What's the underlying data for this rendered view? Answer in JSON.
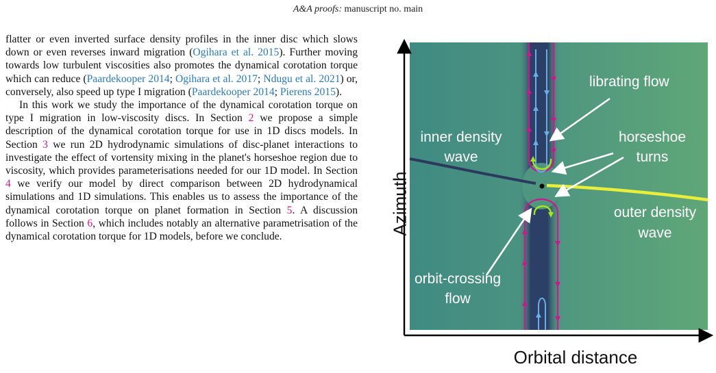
{
  "header": {
    "prefix": "A&A proofs:",
    "suffix": " manuscript no. main"
  },
  "body_text": {
    "p1": [
      {
        "t": "flatter or even inverted surface density profiles in the inner disc which slows down or even reverses inward migration ("
      },
      {
        "t": "Ogihara et al. 2015",
        "c": "cite"
      },
      {
        "t": "). Further moving towards low turbulent viscosities also promotes the dynamical corotation torque which can reduce ("
      },
      {
        "t": "Paardekooper 2014",
        "c": "cite"
      },
      {
        "t": "; "
      },
      {
        "t": "Ogihara et al. 2017",
        "c": "cite"
      },
      {
        "t": "; "
      },
      {
        "t": "Ndugu et al. 2021",
        "c": "cite"
      },
      {
        "t": ") or, conversely, also speed up type I migration ("
      },
      {
        "t": "Paardekooper 2014",
        "c": "cite"
      },
      {
        "t": "; "
      },
      {
        "t": "Pierens 2015",
        "c": "cite"
      },
      {
        "t": ")."
      }
    ],
    "p2": [
      {
        "t": "In this work we study the importance of the dynamical corotation torque on type I migration in low-viscosity discs. In Section "
      },
      {
        "t": "2",
        "c": "sec"
      },
      {
        "t": " we propose a simple description of the dynamical corotation torque for use in 1D discs models. In Section "
      },
      {
        "t": "3",
        "c": "sec"
      },
      {
        "t": " we run 2D hydrodynamic simulations of disc-planet interactions to investigate the effect of vortensity mixing in the planet's horseshoe region due to viscosity, which provides parameterisations needed for our 1D model. In Section "
      },
      {
        "t": "4",
        "c": "sec"
      },
      {
        "t": " we verify our model by direct comparison between 2D hydrodynamical simulations and 1D simulations. This enables us to assess the importance of the dynamical corotation torque on planet formation in Section "
      },
      {
        "t": "5",
        "c": "sec"
      },
      {
        "t": ". A discussion follows in Section "
      },
      {
        "t": "6",
        "c": "sec"
      },
      {
        "t": ", which includes notably an alternative parametrisation of the dynamical corotation torque for 1D models, before we conclude."
      }
    ]
  },
  "figure": {
    "y_axis_label": "Azimuth",
    "x_axis_label": "Orbital distance",
    "labels": {
      "librating_1": "librating flow",
      "inner_1": "inner density",
      "inner_2": "wave",
      "horseshoe_1": "horseshoe",
      "horseshoe_2": "turns",
      "outer_1": "outer density",
      "outer_2": "wave",
      "orbit_1": "orbit-crossing",
      "orbit_2": "flow"
    },
    "colors": {
      "background": "#4f9880",
      "gap": "#2c3f66",
      "outer_wave": "#e8ef3a",
      "inner_wave": "#2b3a5c",
      "magenta_stream": "#d0168f",
      "blue_stream": "#6aaee8",
      "green_stream": "#a6e619"
    }
  }
}
